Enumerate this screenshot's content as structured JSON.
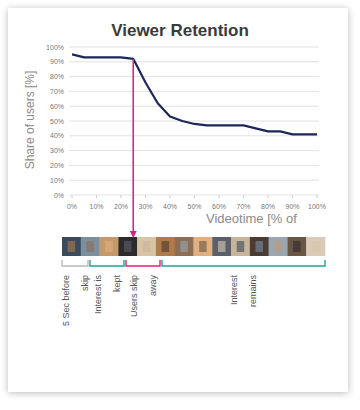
{
  "chart_data": {
    "type": "line",
    "title": "Viewer Retention",
    "y_label": "Share of users [%]",
    "x_label": "Videotime [% of",
    "x": [
      0,
      5,
      10,
      15,
      20,
      25,
      30,
      35,
      40,
      45,
      50,
      55,
      60,
      65,
      70,
      75,
      80,
      85,
      90,
      95,
      100
    ],
    "values": [
      95,
      93,
      93,
      93,
      93,
      92,
      76,
      62,
      53,
      50,
      48,
      47,
      47,
      47,
      47,
      45,
      43,
      43,
      41,
      41,
      41
    ],
    "color": "#1c2759",
    "xlim": [
      0,
      100
    ],
    "ylim": [
      0,
      100
    ],
    "xticks": [
      {
        "value": 0,
        "label": "0%"
      },
      {
        "value": 10,
        "label": "10%"
      },
      {
        "value": 20,
        "label": "20%"
      },
      {
        "value": 30,
        "label": "30%"
      },
      {
        "value": 40,
        "label": "40%"
      },
      {
        "value": 50,
        "label": "50%"
      },
      {
        "value": 60,
        "label": "60%"
      },
      {
        "value": 70,
        "label": "70%"
      },
      {
        "value": 80,
        "label": "80%"
      },
      {
        "value": 90,
        "label": "90%"
      },
      {
        "value": 100,
        "label": "100%"
      }
    ],
    "yticks": [
      {
        "value": 0,
        "label": "0%"
      },
      {
        "value": 10,
        "label": "10%"
      },
      {
        "value": 20,
        "label": "20%"
      },
      {
        "value": 30,
        "label": "30%"
      },
      {
        "value": 40,
        "label": "40%"
      },
      {
        "value": 50,
        "label": "50%"
      },
      {
        "value": 60,
        "label": "60%"
      },
      {
        "value": 70,
        "label": "70%"
      },
      {
        "value": 80,
        "label": "80%"
      },
      {
        "value": 90,
        "label": "90%"
      },
      {
        "value": 100,
        "label": "100%"
      }
    ],
    "grid": true,
    "arrow": {
      "x": 25,
      "color": "#d4267e"
    },
    "phases": [
      {
        "lines": [
          "5 Sec before",
          "skip"
        ],
        "color": "#b9b9b9"
      },
      {
        "lines": [
          "Interest is",
          "kept"
        ],
        "color": "#1ea58f"
      },
      {
        "lines": [
          "Users skip",
          "away"
        ],
        "color": "#d4267e"
      },
      {
        "lines": [
          "Interest",
          "remains"
        ],
        "color": "#1ea58f"
      }
    ]
  }
}
